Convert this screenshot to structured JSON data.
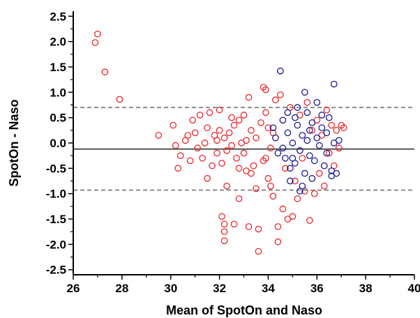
{
  "chart_data": {
    "type": "scatter",
    "title": "",
    "xlabel": "Mean of SpotOn and Naso",
    "ylabel": "SpotOn - Naso",
    "xlim": [
      26,
      40
    ],
    "ylim": [
      -2.6,
      2.6
    ],
    "xticks": [
      26,
      28,
      30,
      32,
      34,
      36,
      38,
      40
    ],
    "yticks": [
      -2.5,
      -2.0,
      -1.5,
      -1.0,
      -0.5,
      0.0,
      0.5,
      1.0,
      1.5,
      2.0,
      2.5
    ],
    "xtick_labels": [
      "26",
      "28",
      "30",
      "32",
      "34",
      "36",
      "38",
      "40"
    ],
    "ytick_labels": [
      "-2.5",
      "-2.0",
      "-1.5",
      "-1.0",
      "-0.5",
      "0.0",
      "0.5",
      "1.0",
      "1.5",
      "2.0",
      "2.5"
    ],
    "reference_lines": [
      {
        "y": 0.7,
        "style": "dashed",
        "color": "#8c8c8c"
      },
      {
        "y": -0.12,
        "style": "solid",
        "color": "#555555"
      },
      {
        "y": -0.93,
        "style": "dashed",
        "color": "#8c8c8c"
      }
    ],
    "grid": false,
    "series": [
      {
        "color": "#e8262b",
        "marker": "open-circle",
        "points": [
          [
            27.0,
            2.15
          ],
          [
            26.9,
            1.98
          ],
          [
            27.3,
            1.4
          ],
          [
            27.9,
            0.86
          ],
          [
            29.5,
            0.15
          ],
          [
            30.1,
            0.35
          ],
          [
            30.2,
            -0.05
          ],
          [
            30.4,
            -0.25
          ],
          [
            30.3,
            -0.5
          ],
          [
            30.6,
            0.05
          ],
          [
            30.8,
            -0.35
          ],
          [
            30.9,
            0.45
          ],
          [
            31.0,
            0.2
          ],
          [
            31.1,
            -0.1
          ],
          [
            31.2,
            0.55
          ],
          [
            31.3,
            -0.3
          ],
          [
            31.4,
            0.0
          ],
          [
            31.5,
            0.3
          ],
          [
            31.6,
            0.6
          ],
          [
            31.7,
            -0.45
          ],
          [
            31.8,
            0.15
          ],
          [
            31.9,
            -0.2
          ],
          [
            32.0,
            0.25
          ],
          [
            32.0,
            0.65
          ],
          [
            32.1,
            -0.4
          ],
          [
            32.2,
            0.1
          ],
          [
            32.3,
            -0.15
          ],
          [
            32.1,
            -1.45
          ],
          [
            32.2,
            -1.6
          ],
          [
            32.2,
            -1.75
          ],
          [
            32.2,
            -1.93
          ],
          [
            32.3,
            -0.85
          ],
          [
            32.4,
            0.2
          ],
          [
            32.5,
            -0.05
          ],
          [
            32.6,
            0.35
          ],
          [
            32.7,
            -0.3
          ],
          [
            32.8,
            0.45
          ],
          [
            32.8,
            -1.1
          ],
          [
            32.6,
            -1.6
          ],
          [
            32.9,
            0.0
          ],
          [
            33.0,
            -0.2
          ],
          [
            33.0,
            0.55
          ],
          [
            33.1,
            -0.55
          ],
          [
            33.2,
            0.9
          ],
          [
            33.2,
            -1.65
          ],
          [
            33.3,
            0.25
          ],
          [
            33.4,
            -0.45
          ],
          [
            33.5,
            -0.9
          ],
          [
            33.5,
            0.1
          ],
          [
            33.6,
            -2.14
          ],
          [
            33.6,
            -1.7
          ],
          [
            33.7,
            0.4
          ],
          [
            33.8,
            -0.35
          ],
          [
            33.8,
            1.1
          ],
          [
            33.9,
            1.05
          ],
          [
            33.9,
            0.6
          ],
          [
            34.0,
            0.3
          ],
          [
            34.0,
            -0.7
          ],
          [
            34.1,
            -0.1
          ],
          [
            34.2,
            -1.05
          ],
          [
            34.3,
            0.85
          ],
          [
            34.4,
            -1.65
          ],
          [
            34.4,
            -1.95
          ],
          [
            34.5,
            0.95
          ],
          [
            34.6,
            -1.3
          ],
          [
            34.7,
            -0.5
          ],
          [
            34.8,
            -1.5
          ],
          [
            34.9,
            0.7
          ],
          [
            35.0,
            -1.45
          ],
          [
            35.1,
            -0.75
          ],
          [
            35.2,
            -1.1
          ],
          [
            35.3,
            0.55
          ],
          [
            35.4,
            -0.3
          ],
          [
            35.5,
            -0.95
          ],
          [
            35.6,
            0.8
          ],
          [
            35.7,
            -1.53
          ],
          [
            35.8,
            0.25
          ],
          [
            35.9,
            -1.0
          ],
          [
            36.0,
            0.45
          ],
          [
            36.1,
            -0.6
          ],
          [
            36.2,
            0.15
          ],
          [
            36.3,
            -0.85
          ],
          [
            36.4,
            0.65
          ],
          [
            36.5,
            -0.2
          ],
          [
            36.6,
            0.35
          ],
          [
            36.7,
            -0.45
          ],
          [
            36.8,
            0.25
          ],
          [
            36.9,
            -0.1
          ],
          [
            37.0,
            0.35
          ],
          [
            37.1,
            0.3
          ],
          [
            31.5,
            -0.7
          ],
          [
            32.5,
            0.5
          ],
          [
            33.3,
            -0.6
          ],
          [
            34.1,
            -0.85
          ],
          [
            30.7,
            0.15
          ],
          [
            31.9,
            0.05
          ],
          [
            32.8,
            -0.5
          ],
          [
            33.1,
            0.05
          ],
          [
            33.9,
            -0.3
          ],
          [
            34.2,
            0.2
          ]
        ]
      },
      {
        "color": "#1a1a8c",
        "marker": "open-circle",
        "points": [
          [
            34.5,
            1.42
          ],
          [
            35.5,
            1.0
          ],
          [
            36.7,
            1.16
          ],
          [
            36.0,
            0.8
          ],
          [
            35.2,
            0.7
          ],
          [
            34.2,
            0.3
          ],
          [
            34.3,
            0.1
          ],
          [
            34.6,
            -0.1
          ],
          [
            34.7,
            -0.3
          ],
          [
            34.8,
            0.2
          ],
          [
            34.9,
            -0.5
          ],
          [
            35.0,
            0.0
          ],
          [
            35.1,
            -0.4
          ],
          [
            35.2,
            0.35
          ],
          [
            35.3,
            -0.15
          ],
          [
            35.4,
            0.15
          ],
          [
            35.5,
            -0.6
          ],
          [
            35.6,
            0.05
          ],
          [
            35.7,
            -0.25
          ],
          [
            35.8,
            0.4
          ],
          [
            35.9,
            -0.35
          ],
          [
            36.0,
            0.1
          ],
          [
            36.1,
            -0.05
          ],
          [
            36.2,
            0.3
          ],
          [
            36.3,
            -0.45
          ],
          [
            36.4,
            -0.2
          ],
          [
            36.5,
            0.5
          ],
          [
            36.6,
            -0.55
          ],
          [
            36.7,
            0.0
          ],
          [
            36.8,
            -0.6
          ],
          [
            36.9,
            0.05
          ],
          [
            35.3,
            -0.95
          ],
          [
            35.4,
            -0.85
          ],
          [
            34.9,
            -0.75
          ],
          [
            35.6,
            0.6
          ],
          [
            36.2,
            0.55
          ],
          [
            35.8,
            -0.7
          ],
          [
            35.1,
            0.5
          ],
          [
            34.4,
            -0.2
          ],
          [
            34.6,
            0.45
          ],
          [
            36.6,
            -0.65
          ],
          [
            36.4,
            0.2
          ],
          [
            35.7,
            0.25
          ],
          [
            35.0,
            -0.3
          ],
          [
            34.8,
            0.6
          ]
        ]
      }
    ]
  }
}
